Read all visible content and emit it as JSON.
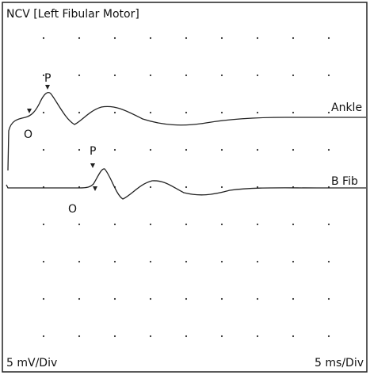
{
  "header": {
    "title": "NCV [Left Fibular Motor]"
  },
  "traces": [
    {
      "name": "Ankle",
      "peak_label": "P",
      "onset_label": "O"
    },
    {
      "name": "B Fib",
      "peak_label": "P",
      "onset_label": "O"
    }
  ],
  "footer": {
    "amplitude_scale": "5 mV/Div",
    "time_scale": "5 ms/Div"
  }
}
